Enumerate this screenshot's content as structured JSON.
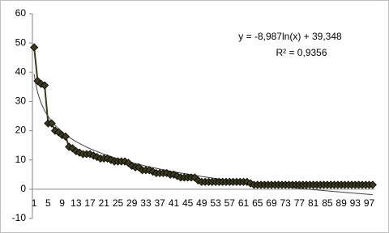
{
  "chart_data": {
    "type": "line",
    "categories": [
      1,
      null,
      null,
      null,
      5,
      null,
      null,
      null,
      9,
      null,
      null,
      null,
      13,
      null,
      null,
      null,
      17,
      null,
      null,
      null,
      21,
      null,
      null,
      null,
      25,
      null,
      null,
      null,
      29,
      null,
      null,
      null,
      33,
      null,
      null,
      null,
      37,
      null,
      null,
      null,
      41,
      null,
      null,
      null,
      45,
      null,
      null,
      null,
      49,
      null,
      null,
      null,
      53,
      null,
      null,
      null,
      57,
      null,
      null,
      null,
      61,
      null,
      null,
      null,
      65,
      null,
      null,
      null,
      69,
      null,
      null,
      null,
      73,
      null,
      null,
      null,
      77,
      null,
      null,
      null,
      81,
      null,
      null,
      null,
      85,
      null,
      null,
      null,
      89,
      null,
      null,
      null,
      93,
      null,
      null,
      null,
      97,
      null
    ],
    "values": [
      48.5,
      37,
      36,
      35.5,
      22.5,
      22.5,
      20,
      19.5,
      18.5,
      18,
      14.5,
      14,
      13,
      12.5,
      12,
      12,
      12,
      11.5,
      11,
      10.5,
      10.5,
      10.5,
      10,
      9.5,
      9.5,
      9.5,
      9.5,
      9,
      8,
      7.5,
      7.5,
      6.5,
      6.5,
      6.5,
      6,
      5.5,
      5.5,
      5.5,
      5.5,
      5,
      5,
      4.5,
      4,
      4,
      4,
      4,
      4,
      3,
      2.5,
      2.5,
      2.5,
      2.5,
      2.5,
      2.5,
      2.5,
      2.5,
      2.5,
      2.5,
      2.5,
      2.5,
      2.5,
      2.5,
      2,
      1.5,
      1.5,
      1.5,
      1.5,
      1.5,
      1.5,
      1.5,
      1.5,
      1.5,
      1.5,
      1.5,
      1.5,
      1.5,
      1.5,
      1.5,
      1.5,
      1.5,
      1.5,
      1.5,
      1.5,
      1.5,
      1.5,
      1.5,
      1.5,
      1.5,
      1.5,
      1.5,
      1.5,
      1.5,
      1.5,
      1.5,
      1.5,
      1.5,
      1.5,
      1.5
    ],
    "color": "#3b3a1c",
    "ylim": [
      -10,
      60
    ],
    "yticks": [
      -10,
      0,
      10,
      20,
      30,
      40,
      50,
      60
    ],
    "trendline": {
      "a": -8.987,
      "b": 39.348,
      "equation": "y = -8,987ln(x) + 39,348",
      "r2": "R² = 0,9356"
    }
  }
}
